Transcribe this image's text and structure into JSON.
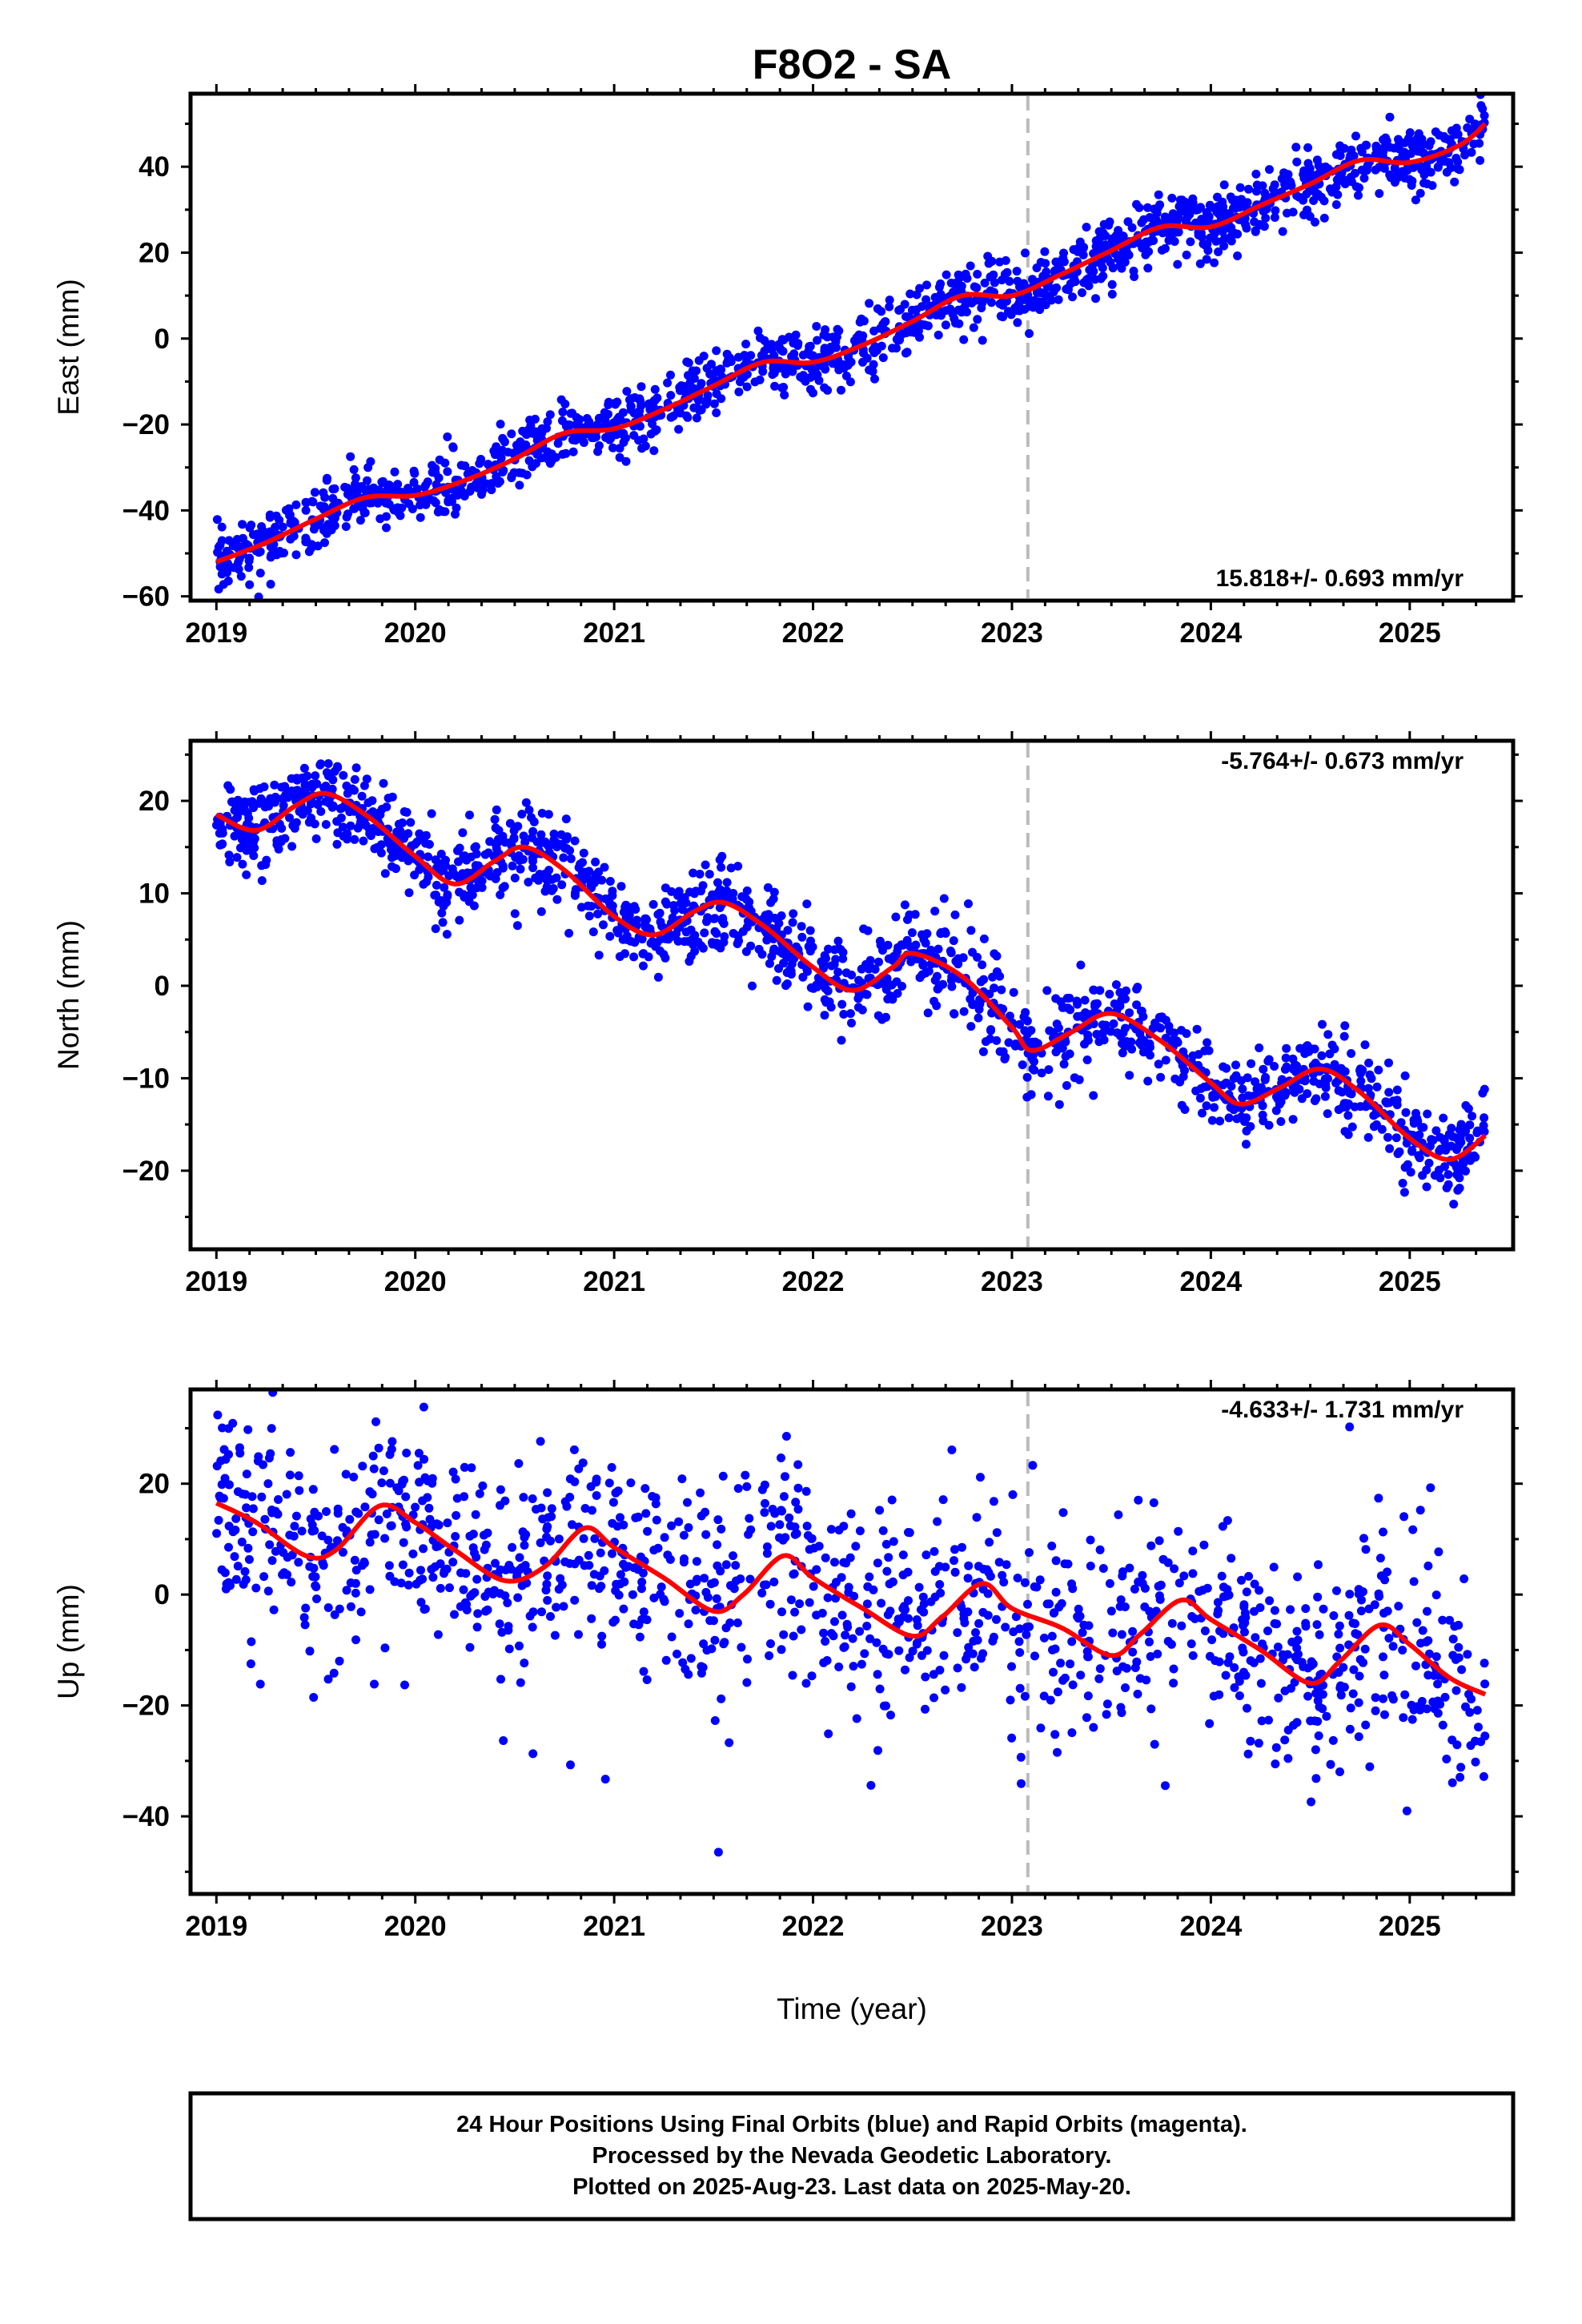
{
  "title": "F8O2 - SA",
  "xlabel": "Time (year)",
  "footer": {
    "line1": "24 Hour Positions Using Final Orbits (blue) and Rapid Orbits (magenta).",
    "line2": "Processed by the Nevada Geodetic Laboratory.",
    "line3": "Plotted on 2025-Aug-23. Last data on 2025-May-20."
  },
  "colors": {
    "final_orbits": "#0000ff",
    "fit": "#ff0000",
    "reference_line": "#bbbbbb"
  },
  "chart_data": [
    {
      "type": "scatter",
      "component": "East",
      "ylabel": "East (mm)",
      "rate_label": "15.818+/- 0.693 mm/yr",
      "xlim": [
        2018.87,
        2025.52
      ],
      "ylim": [
        -61,
        57
      ],
      "xticks": [
        2019,
        2020,
        2021,
        2022,
        2023,
        2024,
        2025
      ],
      "yticks": [
        -60,
        -40,
        -20,
        0,
        20,
        40
      ],
      "reference_line_x": 2023.08,
      "trend": {
        "x0": 2019.0,
        "y0": -52.0,
        "rate": 15.818
      },
      "seasonal_fit": [
        [
          2019.0,
          -52
        ],
        [
          2019.25,
          -47.5
        ],
        [
          2019.5,
          -42
        ],
        [
          2019.75,
          -37
        ],
        [
          2020.0,
          -36.5
        ],
        [
          2020.25,
          -33
        ],
        [
          2020.5,
          -28
        ],
        [
          2020.75,
          -22
        ],
        [
          2021.0,
          -21
        ],
        [
          2021.25,
          -16.5
        ],
        [
          2021.5,
          -11
        ],
        [
          2021.75,
          -5.5
        ],
        [
          2022.0,
          -5.5
        ],
        [
          2022.25,
          -1.5
        ],
        [
          2022.5,
          4
        ],
        [
          2022.75,
          10
        ],
        [
          2023.0,
          10
        ],
        [
          2023.25,
          15
        ],
        [
          2023.5,
          20.5
        ],
        [
          2023.75,
          26
        ],
        [
          2024.0,
          26
        ],
        [
          2024.25,
          31
        ],
        [
          2024.5,
          36
        ],
        [
          2024.75,
          41.5
        ],
        [
          2025.0,
          41
        ],
        [
          2025.25,
          45
        ],
        [
          2025.38,
          50
        ]
      ],
      "data_span": [
        2019.0,
        2025.38
      ],
      "scatter_spread_mm": 3.6,
      "point_count": 1550
    },
    {
      "type": "scatter",
      "component": "North",
      "ylabel": "North (mm)",
      "rate_label": "-5.764+/- 0.673 mm/yr",
      "xlim": [
        2018.87,
        2025.52
      ],
      "ylim": [
        -28.5,
        26.5
      ],
      "xticks": [
        2019,
        2020,
        2021,
        2022,
        2023,
        2024,
        2025
      ],
      "yticks": [
        -20,
        -10,
        0,
        10,
        20
      ],
      "reference_line_x": 2023.08,
      "seasonal_fit": [
        [
          2019.0,
          18.5
        ],
        [
          2019.2,
          16.8
        ],
        [
          2019.4,
          19.5
        ],
        [
          2019.55,
          20.8
        ],
        [
          2019.75,
          18.5
        ],
        [
          2020.0,
          14
        ],
        [
          2020.2,
          11
        ],
        [
          2020.4,
          13.5
        ],
        [
          2020.55,
          15
        ],
        [
          2020.75,
          12.5
        ],
        [
          2021.0,
          7.5
        ],
        [
          2021.2,
          5.5
        ],
        [
          2021.4,
          8
        ],
        [
          2021.55,
          9
        ],
        [
          2021.75,
          6.5
        ],
        [
          2022.0,
          2
        ],
        [
          2022.2,
          -0.5
        ],
        [
          2022.4,
          2
        ],
        [
          2022.5,
          3.5
        ],
        [
          2022.75,
          1
        ],
        [
          2023.0,
          -4.5
        ],
        [
          2023.1,
          -7
        ],
        [
          2023.3,
          -5
        ],
        [
          2023.5,
          -3
        ],
        [
          2023.75,
          -6
        ],
        [
          2024.0,
          -10.5
        ],
        [
          2024.15,
          -12.8
        ],
        [
          2024.35,
          -11
        ],
        [
          2024.55,
          -9
        ],
        [
          2024.75,
          -11.5
        ],
        [
          2025.0,
          -16.5
        ],
        [
          2025.2,
          -18.8
        ],
        [
          2025.38,
          -16.2
        ]
      ],
      "data_span": [
        2019.0,
        2025.38
      ],
      "scatter_spread_mm": 2.4,
      "point_count": 1550
    },
    {
      "type": "scatter",
      "component": "Up",
      "ylabel": "Up (mm)",
      "rate_label": "-4.633+/- 1.731 mm/yr",
      "xlim": [
        2018.87,
        2025.52
      ],
      "ylim": [
        -54,
        37
      ],
      "xticks": [
        2019,
        2020,
        2021,
        2022,
        2023,
        2024,
        2025
      ],
      "yticks": [
        -40,
        -20,
        0,
        20
      ],
      "reference_line_x": 2023.08,
      "seasonal_fit": [
        [
          2019.0,
          16.5
        ],
        [
          2019.2,
          13
        ],
        [
          2019.45,
          7
        ],
        [
          2019.6,
          8
        ],
        [
          2019.82,
          16
        ],
        [
          2020.0,
          13
        ],
        [
          2020.2,
          8
        ],
        [
          2020.45,
          2.5
        ],
        [
          2020.65,
          5
        ],
        [
          2020.85,
          12
        ],
        [
          2021.0,
          8.5
        ],
        [
          2021.25,
          3
        ],
        [
          2021.5,
          -3
        ],
        [
          2021.65,
          0
        ],
        [
          2021.85,
          7
        ],
        [
          2022.0,
          3
        ],
        [
          2022.25,
          -2.5
        ],
        [
          2022.5,
          -7.5
        ],
        [
          2022.65,
          -4
        ],
        [
          2022.85,
          2
        ],
        [
          2023.0,
          -2.5
        ],
        [
          2023.25,
          -6
        ],
        [
          2023.5,
          -11
        ],
        [
          2023.65,
          -7
        ],
        [
          2023.85,
          -1
        ],
        [
          2024.0,
          -4.5
        ],
        [
          2024.25,
          -10
        ],
        [
          2024.5,
          -16
        ],
        [
          2024.65,
          -12
        ],
        [
          2024.85,
          -5.5
        ],
        [
          2025.0,
          -9
        ],
        [
          2025.2,
          -15
        ],
        [
          2025.38,
          -18
        ]
      ],
      "data_span": [
        2019.0,
        2025.38
      ],
      "scatter_spread_mm": 9.5,
      "point_count": 1250
    }
  ]
}
